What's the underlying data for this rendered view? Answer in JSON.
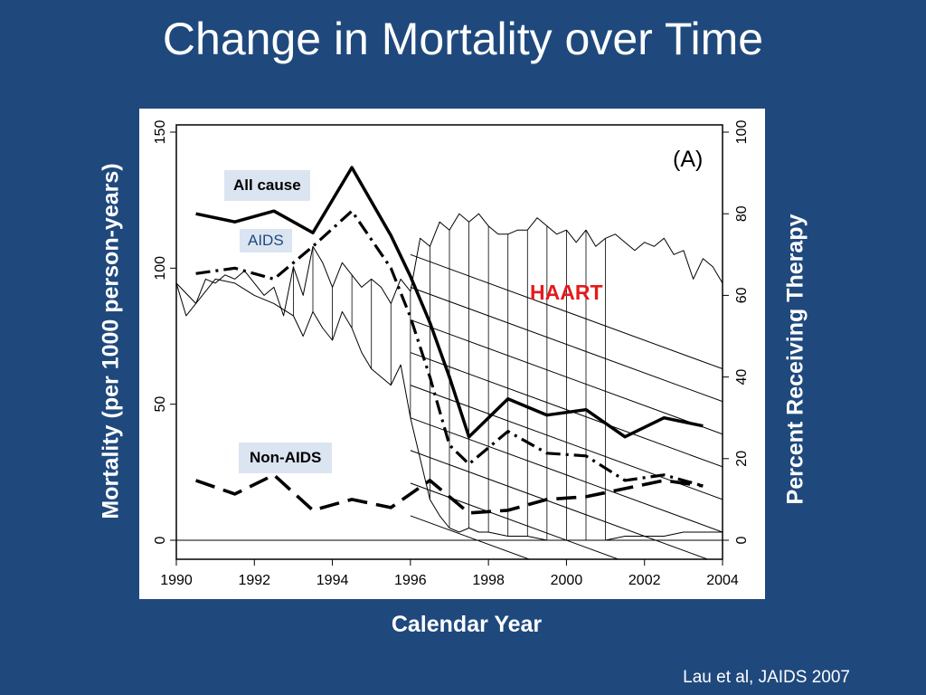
{
  "slide": {
    "title": "Change in Mortality over Time",
    "citation": "Lau et al, JAIDS 2007"
  },
  "chart_data": {
    "type": "line",
    "panel_label": "(A)",
    "xlabel": "Calendar Year",
    "ylabel_left": "Mortality (per 1000 person-years)",
    "ylabel_right": "Percent Receiving Therapy",
    "xlim": [
      1990,
      2004
    ],
    "ylim_left": [
      0,
      150
    ],
    "ylim_right": [
      0,
      100
    ],
    "x_ticks": [
      "1990",
      "1992",
      "1994",
      "1996",
      "1998",
      "2000",
      "2002",
      "2004"
    ],
    "y_ticks_left": [
      "0",
      "50",
      "100",
      "150"
    ],
    "y_ticks_right": [
      "0",
      "20",
      "40",
      "60",
      "80",
      "100"
    ],
    "annotations": {
      "all_cause": "All cause",
      "aids": "AIDS",
      "non_aids": "Non-AIDS",
      "haart": "HAART"
    },
    "series": [
      {
        "name": "All cause",
        "axis": "left",
        "style": "solid-thick",
        "x": [
          1990.5,
          1991.5,
          1992.5,
          1993.5,
          1994.5,
          1995.5,
          1996,
          1996.5,
          1997,
          1997.5,
          1998.5,
          1999.5,
          2000.5,
          2001.5,
          2002.5,
          2003.5
        ],
        "y": [
          120,
          117,
          121,
          113,
          137,
          112,
          97,
          80,
          60,
          38,
          52,
          46,
          48,
          38,
          45,
          42
        ]
      },
      {
        "name": "AIDS",
        "axis": "left",
        "style": "dash-dot-thick",
        "x": [
          1990.5,
          1991.5,
          1992.5,
          1993.5,
          1994.5,
          1995.5,
          1996,
          1996.5,
          1997,
          1997.5,
          1998.5,
          1999.5,
          2000.5,
          2001.5,
          2002.5,
          2003.5
        ],
        "y": [
          98,
          100,
          96,
          108,
          121,
          100,
          82,
          60,
          35,
          28,
          40,
          32,
          31,
          22,
          24,
          20
        ]
      },
      {
        "name": "Non-AIDS",
        "axis": "left",
        "style": "long-dash-thick",
        "x": [
          1990.5,
          1991.5,
          1992.5,
          1993.5,
          1994.5,
          1995.5,
          1996.5,
          1997.5,
          1998.5,
          1999.5,
          2000.5,
          2001.5,
          2002.5,
          2003.5
        ],
        "y": [
          22,
          17,
          24,
          11,
          15,
          12,
          22,
          10,
          11,
          15,
          16,
          19,
          22,
          20
        ]
      },
      {
        "name": "Therapy upper bound",
        "axis": "right",
        "style": "thin",
        "x": [
          1990,
          1990.25,
          1990.5,
          1990.75,
          1991,
          1991.25,
          1991.5,
          1991.75,
          1992,
          1992.25,
          1992.5,
          1992.75,
          1993,
          1993.25,
          1993.5,
          1993.75,
          1994,
          1994.25,
          1994.5,
          1994.75,
          1995,
          1995.25,
          1995.5,
          1995.75,
          1996,
          1996.25,
          1996.5,
          1996.75,
          1997,
          1997.25,
          1997.5,
          1997.75,
          1998,
          1998.25,
          1998.5,
          1998.75,
          1999,
          1999.25,
          1999.5,
          1999.75,
          2000,
          2000.25,
          2000.5,
          2000.75,
          2001,
          2001.25,
          2001.5,
          2001.75,
          2002,
          2002.25,
          2002.5,
          2002.75,
          2003,
          2003.25,
          2003.5,
          2003.75,
          2004
        ],
        "y": [
          63,
          55,
          58,
          64,
          63,
          65,
          64,
          66,
          63,
          60,
          62,
          55,
          67,
          60,
          72,
          68,
          62,
          68,
          65,
          62,
          64,
          62,
          58,
          64,
          61,
          74,
          72,
          78,
          76,
          80,
          78,
          80,
          77,
          75,
          75,
          76,
          76,
          79,
          77,
          75,
          76,
          73,
          76,
          72,
          74,
          75,
          73,
          71,
          73,
          72,
          74,
          70,
          71,
          64,
          69,
          67,
          63
        ]
      },
      {
        "name": "Therapy lower bound",
        "axis": "right",
        "style": "thin",
        "x": [
          1990,
          1990.5,
          1991,
          1991.5,
          1992,
          1992.5,
          1993,
          1993.25,
          1993.5,
          1993.75,
          1994,
          1994.25,
          1994.5,
          1994.75,
          1995,
          1995.25,
          1995.5,
          1995.75,
          1996,
          1996.25,
          1996.5,
          1996.75,
          1997,
          1997.25,
          1997.5,
          1997.75,
          1998,
          1998.5,
          1999,
          1999.5,
          2000,
          2000.5,
          2001,
          2001.5,
          2002,
          2002.5,
          2003,
          2003.5,
          2004
        ],
        "y": [
          63,
          58,
          64,
          63,
          60,
          58,
          55,
          50,
          56,
          52,
          49,
          56,
          52,
          46,
          42,
          40,
          38,
          43,
          30,
          20,
          10,
          6,
          3,
          2,
          3,
          2,
          2,
          1,
          1,
          0,
          0,
          0,
          0,
          1,
          1,
          1,
          2,
          2,
          2
        ]
      }
    ]
  }
}
